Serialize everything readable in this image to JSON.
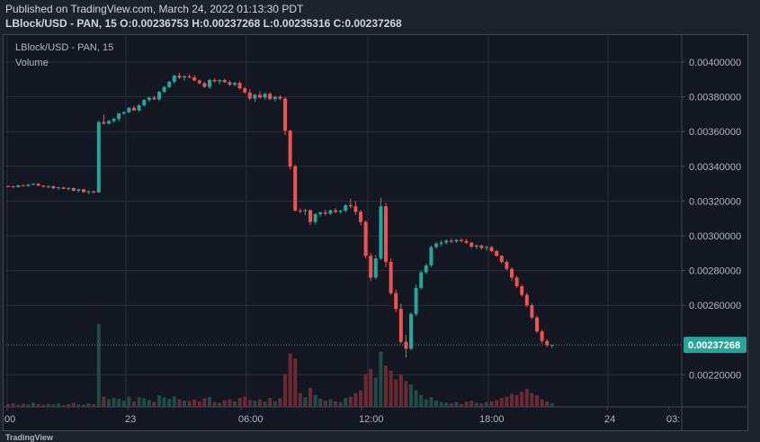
{
  "header": {
    "published": "Published on TradingView.com, March 24, 2022 01:13:30 PDT",
    "ohlc": "LBlock/USD - PAN, 15 O:0.00236753 H:0.00237268 L:0.00235316 C:0.00237268"
  },
  "legend": {
    "symbol": "LBlock/USD - PAN, 15",
    "volume": "Volume"
  },
  "footer": {
    "brand": "TradingView"
  },
  "colors": {
    "up": "#26a69a",
    "down": "#ef5350",
    "vol_up": "#1f4d45",
    "vol_down": "#6b2a33",
    "bg": "#131722",
    "grid": "#2a2e39",
    "text": "#b2b5be"
  },
  "chart_data": {
    "type": "candlestick",
    "symbol": "LBlock/USD - PAN, 15",
    "ylim": [
      0.002,
      0.0042
    ],
    "y_ticks": [
      "0.00400000",
      "0.00380000",
      "0.00360000",
      "0.00340000",
      "0.00320000",
      "0.00300000",
      "0.00280000",
      "0.00260000",
      "0.00220000"
    ],
    "x_ticks": [
      "00",
      "23",
      "06:00",
      "12:00",
      "18:00",
      "24",
      "03:"
    ],
    "last_price": "0.00237268",
    "candles": [
      [
        0.003286,
        0.003289,
        0.003282,
        0.003284,
        8
      ],
      [
        0.003284,
        0.00329,
        0.003278,
        0.003281,
        10
      ],
      [
        0.003281,
        0.003294,
        0.003279,
        0.003291,
        6
      ],
      [
        0.003291,
        0.003296,
        0.003285,
        0.003287,
        9
      ],
      [
        0.003287,
        0.003298,
        0.003283,
        0.003295,
        7
      ],
      [
        0.003295,
        0.003304,
        0.00329,
        0.0033,
        12
      ],
      [
        0.0033,
        0.003303,
        0.003286,
        0.003289,
        8
      ],
      [
        0.003289,
        0.003292,
        0.003278,
        0.003283,
        6
      ],
      [
        0.003283,
        0.00329,
        0.003275,
        0.003286,
        9
      ],
      [
        0.003286,
        0.003289,
        0.00327,
        0.003274,
        7
      ],
      [
        0.003274,
        0.003282,
        0.003266,
        0.003279,
        10
      ],
      [
        0.003279,
        0.003283,
        0.003268,
        0.003271,
        5
      ],
      [
        0.003271,
        0.00328,
        0.003262,
        0.003275,
        8
      ],
      [
        0.003275,
        0.003278,
        0.003256,
        0.00326,
        11
      ],
      [
        0.00326,
        0.003272,
        0.00325,
        0.003268,
        7
      ],
      [
        0.003268,
        0.00327,
        0.003248,
        0.003252,
        6
      ],
      [
        0.003252,
        0.003262,
        0.00324,
        0.003256,
        10
      ],
      [
        0.003256,
        0.00326,
        0.003245,
        0.00325,
        8
      ],
      [
        0.00325,
        0.003664,
        0.003248,
        0.003655,
        240
      ],
      [
        0.003655,
        0.003698,
        0.00364,
        0.003646,
        30
      ],
      [
        0.003646,
        0.003668,
        0.00364,
        0.003661,
        22
      ],
      [
        0.003661,
        0.00368,
        0.003652,
        0.003673,
        26
      ],
      [
        0.003673,
        0.003709,
        0.00366,
        0.003704,
        24
      ],
      [
        0.003704,
        0.003718,
        0.003695,
        0.003712,
        18
      ],
      [
        0.003712,
        0.003742,
        0.003705,
        0.003737,
        30
      ],
      [
        0.003737,
        0.003749,
        0.003718,
        0.003722,
        16
      ],
      [
        0.003722,
        0.00376,
        0.003714,
        0.003751,
        28
      ],
      [
        0.003751,
        0.003787,
        0.003742,
        0.003782,
        25
      ],
      [
        0.003782,
        0.003803,
        0.00377,
        0.003795,
        20
      ],
      [
        0.003795,
        0.003806,
        0.003781,
        0.003786,
        15
      ],
      [
        0.003786,
        0.003834,
        0.003776,
        0.003829,
        33
      ],
      [
        0.003829,
        0.003862,
        0.003821,
        0.003857,
        27
      ],
      [
        0.003857,
        0.003892,
        0.003849,
        0.003887,
        23
      ],
      [
        0.003887,
        0.003928,
        0.003874,
        0.003922,
        30
      ],
      [
        0.003922,
        0.003938,
        0.003902,
        0.003911,
        22
      ],
      [
        0.003911,
        0.003926,
        0.003895,
        0.003918,
        18
      ],
      [
        0.003918,
        0.003929,
        0.003905,
        0.003912,
        17
      ],
      [
        0.003912,
        0.003926,
        0.00389,
        0.003894,
        21
      ],
      [
        0.003894,
        0.0039,
        0.003872,
        0.003878,
        16
      ],
      [
        0.003878,
        0.003887,
        0.003852,
        0.003857,
        25
      ],
      [
        0.003857,
        0.003903,
        0.003845,
        0.003897,
        28
      ],
      [
        0.003897,
        0.003908,
        0.003881,
        0.003889,
        14
      ],
      [
        0.003889,
        0.003902,
        0.003872,
        0.003896,
        12
      ],
      [
        0.003896,
        0.003905,
        0.00388,
        0.003884,
        19
      ],
      [
        0.003884,
        0.003895,
        0.003862,
        0.00387,
        22
      ],
      [
        0.00387,
        0.003886,
        0.00386,
        0.00388,
        16
      ],
      [
        0.00388,
        0.00389,
        0.003843,
        0.003849,
        26
      ],
      [
        0.003849,
        0.003857,
        0.00382,
        0.003825,
        30
      ],
      [
        0.003825,
        0.003845,
        0.00378,
        0.00379,
        20
      ],
      [
        0.00379,
        0.003818,
        0.00377,
        0.003812,
        18
      ],
      [
        0.003812,
        0.003832,
        0.00379,
        0.003796,
        22
      ],
      [
        0.003796,
        0.003824,
        0.003785,
        0.003818,
        15
      ],
      [
        0.003818,
        0.003826,
        0.00378,
        0.003787,
        26
      ],
      [
        0.003787,
        0.003806,
        0.003775,
        0.0038,
        17
      ],
      [
        0.0038,
        0.00381,
        0.00378,
        0.00379,
        25
      ],
      [
        0.00379,
        0.003798,
        0.00358,
        0.003605,
        95
      ],
      [
        0.003605,
        0.003612,
        0.00338,
        0.0034,
        155
      ],
      [
        0.0034,
        0.00341,
        0.00314,
        0.003145,
        140
      ],
      [
        0.003145,
        0.003158,
        0.00313,
        0.003142,
        40
      ],
      [
        0.003142,
        0.003156,
        0.003119,
        0.003148,
        28
      ],
      [
        0.003148,
        0.003152,
        0.00306,
        0.00308,
        55
      ],
      [
        0.00308,
        0.00313,
        0.003065,
        0.003125,
        35
      ],
      [
        0.003125,
        0.00314,
        0.00311,
        0.003135,
        24
      ],
      [
        0.003135,
        0.00315,
        0.003118,
        0.003128,
        18
      ],
      [
        0.003128,
        0.00315,
        0.00312,
        0.003147,
        22
      ],
      [
        0.003147,
        0.00316,
        0.00313,
        0.003138,
        16
      ],
      [
        0.003138,
        0.00315,
        0.003128,
        0.003145,
        14
      ],
      [
        0.003145,
        0.003182,
        0.003135,
        0.003176,
        26
      ],
      [
        0.003176,
        0.003214,
        0.00316,
        0.00317,
        30
      ],
      [
        0.00317,
        0.0032,
        0.00312,
        0.003138,
        40
      ],
      [
        0.003138,
        0.00315,
        0.00306,
        0.00308,
        48
      ],
      [
        0.00308,
        0.00309,
        0.00287,
        0.002885,
        95
      ],
      [
        0.002885,
        0.0029,
        0.00274,
        0.00276,
        110
      ],
      [
        0.00276,
        0.00289,
        0.00275,
        0.00287,
        85
      ],
      [
        0.00287,
        0.00322,
        0.00286,
        0.00317,
        160
      ],
      [
        0.00317,
        0.00319,
        0.00282,
        0.00285,
        120
      ],
      [
        0.00285,
        0.00287,
        0.00266,
        0.00267,
        105
      ],
      [
        0.00267,
        0.00269,
        0.00256,
        0.00258,
        80
      ],
      [
        0.00258,
        0.00261,
        0.00238,
        0.00239,
        95
      ],
      [
        0.00239,
        0.00243,
        0.0023,
        0.00235,
        75
      ],
      [
        0.00235,
        0.00256,
        0.00234,
        0.00255,
        65
      ],
      [
        0.00255,
        0.00272,
        0.00254,
        0.0027,
        48
      ],
      [
        0.0027,
        0.0028,
        0.00269,
        0.00279,
        35
      ],
      [
        0.00279,
        0.00284,
        0.00278,
        0.00283,
        22
      ],
      [
        0.00283,
        0.002945,
        0.00282,
        0.002935,
        28
      ],
      [
        0.002935,
        0.002965,
        0.002925,
        0.002955,
        18
      ],
      [
        0.002955,
        0.002975,
        0.00294,
        0.002962,
        14
      ],
      [
        0.002962,
        0.00298,
        0.00295,
        0.002972,
        12
      ],
      [
        0.002972,
        0.002985,
        0.002958,
        0.002968,
        10
      ],
      [
        0.002968,
        0.002982,
        0.00296,
        0.002976,
        14
      ],
      [
        0.002976,
        0.002986,
        0.002962,
        0.00297,
        9
      ],
      [
        0.00297,
        0.002982,
        0.002955,
        0.00296,
        16
      ],
      [
        0.00296,
        0.002966,
        0.00293,
        0.002938,
        18
      ],
      [
        0.002938,
        0.00295,
        0.002925,
        0.002944,
        12
      ],
      [
        0.002944,
        0.00295,
        0.00292,
        0.00293,
        10
      ],
      [
        0.00293,
        0.002945,
        0.002915,
        0.002935,
        14
      ],
      [
        0.002935,
        0.002942,
        0.002905,
        0.002912,
        16
      ],
      [
        0.002912,
        0.00292,
        0.00288,
        0.002885,
        20
      ],
      [
        0.002885,
        0.00289,
        0.00284,
        0.00285,
        26
      ],
      [
        0.00285,
        0.002862,
        0.0028,
        0.00281,
        30
      ],
      [
        0.00281,
        0.00282,
        0.00274,
        0.00276,
        38
      ],
      [
        0.00276,
        0.00277,
        0.0027,
        0.00271,
        34
      ],
      [
        0.00271,
        0.00272,
        0.00265,
        0.00266,
        44
      ],
      [
        0.00266,
        0.002672,
        0.00259,
        0.0026,
        52
      ],
      [
        0.0026,
        0.002612,
        0.00252,
        0.00253,
        40
      ],
      [
        0.00253,
        0.00254,
        0.00244,
        0.00245,
        34
      ],
      [
        0.00245,
        0.00246,
        0.00238,
        0.002395,
        22
      ],
      [
        0.002395,
        0.002405,
        0.00236,
        0.002372,
        16
      ],
      [
        0.002368,
        0.002373,
        0.002353,
        0.002373,
        10
      ]
    ]
  }
}
